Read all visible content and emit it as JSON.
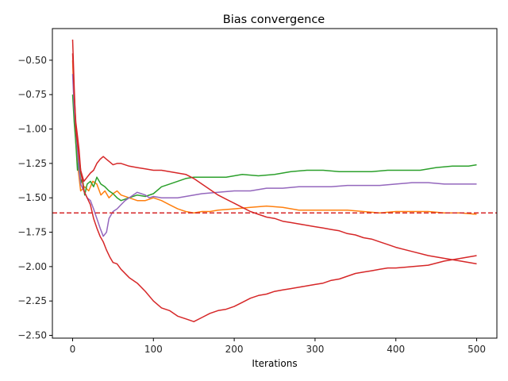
{
  "chart_data": {
    "type": "line",
    "title": "Bias convergence",
    "xlabel": "Iterations",
    "ylabel": "",
    "xlim": [
      -25,
      525
    ],
    "ylim": [
      -2.52,
      -0.27
    ],
    "x_ticks": [
      0,
      100,
      200,
      300,
      400,
      500
    ],
    "y_ticks": [
      -0.5,
      -0.75,
      -1.0,
      -1.25,
      -1.5,
      -1.75,
      -2.0,
      -2.25,
      -2.5
    ],
    "y_tick_labels": [
      "−0.50",
      "−0.75",
      "−1.00",
      "−1.25",
      "−1.50",
      "−1.75",
      "−2.00",
      "−2.25",
      "−2.50"
    ],
    "x_tick_labels": [
      "0",
      "100",
      "200",
      "300",
      "400",
      "500"
    ],
    "grid": false,
    "reference_line": {
      "y": -1.61,
      "color": "#d62728",
      "style": "dashed"
    },
    "series": [
      {
        "color": "#ff7f0e",
        "points": [
          [
            0,
            -0.5
          ],
          [
            2,
            -0.85
          ],
          [
            4,
            -1.1
          ],
          [
            7,
            -1.3
          ],
          [
            10,
            -1.45
          ],
          [
            15,
            -1.42
          ],
          [
            20,
            -1.45
          ],
          [
            25,
            -1.38
          ],
          [
            30,
            -1.4
          ],
          [
            35,
            -1.48
          ],
          [
            40,
            -1.45
          ],
          [
            45,
            -1.5
          ],
          [
            50,
            -1.47
          ],
          [
            55,
            -1.45
          ],
          [
            60,
            -1.48
          ],
          [
            70,
            -1.5
          ],
          [
            80,
            -1.52
          ],
          [
            90,
            -1.52
          ],
          [
            100,
            -1.5
          ],
          [
            110,
            -1.52
          ],
          [
            120,
            -1.55
          ],
          [
            130,
            -1.58
          ],
          [
            140,
            -1.6
          ],
          [
            150,
            -1.61
          ],
          [
            160,
            -1.6
          ],
          [
            170,
            -1.6
          ],
          [
            180,
            -1.59
          ],
          [
            200,
            -1.58
          ],
          [
            220,
            -1.57
          ],
          [
            240,
            -1.56
          ],
          [
            260,
            -1.57
          ],
          [
            280,
            -1.59
          ],
          [
            300,
            -1.59
          ],
          [
            320,
            -1.59
          ],
          [
            340,
            -1.59
          ],
          [
            360,
            -1.6
          ],
          [
            380,
            -1.61
          ],
          [
            400,
            -1.6
          ],
          [
            420,
            -1.6
          ],
          [
            440,
            -1.6
          ],
          [
            460,
            -1.61
          ],
          [
            480,
            -1.61
          ],
          [
            500,
            -1.62
          ]
        ]
      },
      {
        "color": "#2ca02c",
        "points": [
          [
            0,
            -0.75
          ],
          [
            2,
            -0.95
          ],
          [
            4,
            -1.1
          ],
          [
            6,
            -1.3
          ],
          [
            8,
            -1.2
          ],
          [
            10,
            -1.4
          ],
          [
            12,
            -1.35
          ],
          [
            15,
            -1.48
          ],
          [
            18,
            -1.4
          ],
          [
            22,
            -1.38
          ],
          [
            26,
            -1.42
          ],
          [
            30,
            -1.35
          ],
          [
            35,
            -1.4
          ],
          [
            40,
            -1.42
          ],
          [
            45,
            -1.45
          ],
          [
            50,
            -1.47
          ],
          [
            55,
            -1.5
          ],
          [
            60,
            -1.52
          ],
          [
            70,
            -1.5
          ],
          [
            80,
            -1.48
          ],
          [
            90,
            -1.49
          ],
          [
            100,
            -1.47
          ],
          [
            110,
            -1.42
          ],
          [
            120,
            -1.4
          ],
          [
            130,
            -1.38
          ],
          [
            140,
            -1.36
          ],
          [
            150,
            -1.35
          ],
          [
            170,
            -1.35
          ],
          [
            190,
            -1.35
          ],
          [
            210,
            -1.33
          ],
          [
            230,
            -1.34
          ],
          [
            250,
            -1.33
          ],
          [
            270,
            -1.31
          ],
          [
            290,
            -1.3
          ],
          [
            310,
            -1.3
          ],
          [
            330,
            -1.31
          ],
          [
            350,
            -1.31
          ],
          [
            370,
            -1.31
          ],
          [
            390,
            -1.3
          ],
          [
            410,
            -1.3
          ],
          [
            430,
            -1.3
          ],
          [
            450,
            -1.28
          ],
          [
            470,
            -1.27
          ],
          [
            490,
            -1.27
          ],
          [
            500,
            -1.26
          ]
        ]
      },
      {
        "color": "#9467bd",
        "points": [
          [
            0,
            -0.6
          ],
          [
            2,
            -0.85
          ],
          [
            4,
            -1.0
          ],
          [
            6,
            -1.15
          ],
          [
            8,
            -1.3
          ],
          [
            10,
            -1.4
          ],
          [
            14,
            -1.45
          ],
          [
            18,
            -1.5
          ],
          [
            22,
            -1.52
          ],
          [
            26,
            -1.58
          ],
          [
            30,
            -1.65
          ],
          [
            34,
            -1.72
          ],
          [
            38,
            -1.78
          ],
          [
            42,
            -1.75
          ],
          [
            45,
            -1.65
          ],
          [
            50,
            -1.6
          ],
          [
            55,
            -1.58
          ],
          [
            60,
            -1.55
          ],
          [
            65,
            -1.52
          ],
          [
            70,
            -1.5
          ],
          [
            75,
            -1.48
          ],
          [
            80,
            -1.46
          ],
          [
            85,
            -1.47
          ],
          [
            90,
            -1.48
          ],
          [
            95,
            -1.5
          ],
          [
            100,
            -1.49
          ],
          [
            110,
            -1.5
          ],
          [
            120,
            -1.5
          ],
          [
            130,
            -1.5
          ],
          [
            140,
            -1.49
          ],
          [
            150,
            -1.48
          ],
          [
            160,
            -1.47
          ],
          [
            180,
            -1.46
          ],
          [
            200,
            -1.45
          ],
          [
            220,
            -1.45
          ],
          [
            240,
            -1.43
          ],
          [
            260,
            -1.43
          ],
          [
            280,
            -1.42
          ],
          [
            300,
            -1.42
          ],
          [
            320,
            -1.42
          ],
          [
            340,
            -1.41
          ],
          [
            360,
            -1.41
          ],
          [
            380,
            -1.41
          ],
          [
            400,
            -1.4
          ],
          [
            420,
            -1.39
          ],
          [
            440,
            -1.39
          ],
          [
            460,
            -1.4
          ],
          [
            480,
            -1.4
          ],
          [
            500,
            -1.4
          ]
        ]
      },
      {
        "color": "#d62728",
        "points": [
          [
            0,
            -0.35
          ],
          [
            2,
            -0.7
          ],
          [
            4,
            -1.0
          ],
          [
            6,
            -1.1
          ],
          [
            8,
            -1.2
          ],
          [
            10,
            -1.3
          ],
          [
            14,
            -1.45
          ],
          [
            18,
            -1.5
          ],
          [
            22,
            -1.55
          ],
          [
            26,
            -1.65
          ],
          [
            30,
            -1.72
          ],
          [
            34,
            -1.78
          ],
          [
            38,
            -1.82
          ],
          [
            42,
            -1.88
          ],
          [
            46,
            -1.93
          ],
          [
            50,
            -1.97
          ],
          [
            55,
            -1.98
          ],
          [
            60,
            -2.02
          ],
          [
            70,
            -2.08
          ],
          [
            80,
            -2.12
          ],
          [
            90,
            -2.18
          ],
          [
            100,
            -2.25
          ],
          [
            110,
            -2.3
          ],
          [
            120,
            -2.32
          ],
          [
            130,
            -2.36
          ],
          [
            140,
            -2.38
          ],
          [
            150,
            -2.4
          ],
          [
            160,
            -2.37
          ],
          [
            170,
            -2.34
          ],
          [
            180,
            -2.32
          ],
          [
            190,
            -2.31
          ],
          [
            200,
            -2.29
          ],
          [
            210,
            -2.26
          ],
          [
            220,
            -2.23
          ],
          [
            230,
            -2.21
          ],
          [
            240,
            -2.2
          ],
          [
            250,
            -2.18
          ],
          [
            260,
            -2.17
          ],
          [
            270,
            -2.16
          ],
          [
            280,
            -2.15
          ],
          [
            290,
            -2.14
          ],
          [
            300,
            -2.13
          ],
          [
            310,
            -2.12
          ],
          [
            320,
            -2.1
          ],
          [
            330,
            -2.09
          ],
          [
            340,
            -2.07
          ],
          [
            350,
            -2.05
          ],
          [
            360,
            -2.04
          ],
          [
            370,
            -2.03
          ],
          [
            380,
            -2.02
          ],
          [
            390,
            -2.01
          ],
          [
            400,
            -2.01
          ],
          [
            420,
            -2.0
          ],
          [
            440,
            -1.99
          ],
          [
            460,
            -1.96
          ],
          [
            480,
            -1.94
          ],
          [
            500,
            -1.92
          ]
        ]
      },
      {
        "color": "#d62728",
        "points": [
          [
            0,
            -0.45
          ],
          [
            2,
            -0.75
          ],
          [
            4,
            -0.95
          ],
          [
            6,
            -1.05
          ],
          [
            8,
            -1.15
          ],
          [
            10,
            -1.3
          ],
          [
            14,
            -1.38
          ],
          [
            18,
            -1.35
          ],
          [
            22,
            -1.32
          ],
          [
            26,
            -1.3
          ],
          [
            30,
            -1.25
          ],
          [
            34,
            -1.22
          ],
          [
            38,
            -1.2
          ],
          [
            42,
            -1.22
          ],
          [
            46,
            -1.24
          ],
          [
            50,
            -1.26
          ],
          [
            55,
            -1.25
          ],
          [
            60,
            -1.25
          ],
          [
            70,
            -1.27
          ],
          [
            80,
            -1.28
          ],
          [
            90,
            -1.29
          ],
          [
            100,
            -1.3
          ],
          [
            110,
            -1.3
          ],
          [
            120,
            -1.31
          ],
          [
            130,
            -1.32
          ],
          [
            140,
            -1.33
          ],
          [
            150,
            -1.36
          ],
          [
            160,
            -1.4
          ],
          [
            170,
            -1.44
          ],
          [
            180,
            -1.48
          ],
          [
            190,
            -1.51
          ],
          [
            200,
            -1.54
          ],
          [
            210,
            -1.57
          ],
          [
            220,
            -1.6
          ],
          [
            230,
            -1.62
          ],
          [
            240,
            -1.64
          ],
          [
            250,
            -1.65
          ],
          [
            260,
            -1.67
          ],
          [
            270,
            -1.68
          ],
          [
            280,
            -1.69
          ],
          [
            290,
            -1.7
          ],
          [
            300,
            -1.71
          ],
          [
            310,
            -1.72
          ],
          [
            320,
            -1.73
          ],
          [
            330,
            -1.74
          ],
          [
            340,
            -1.76
          ],
          [
            350,
            -1.77
          ],
          [
            360,
            -1.79
          ],
          [
            370,
            -1.8
          ],
          [
            380,
            -1.82
          ],
          [
            390,
            -1.84
          ],
          [
            400,
            -1.86
          ],
          [
            420,
            -1.89
          ],
          [
            440,
            -1.92
          ],
          [
            460,
            -1.94
          ],
          [
            480,
            -1.96
          ],
          [
            500,
            -1.98
          ]
        ]
      }
    ]
  }
}
